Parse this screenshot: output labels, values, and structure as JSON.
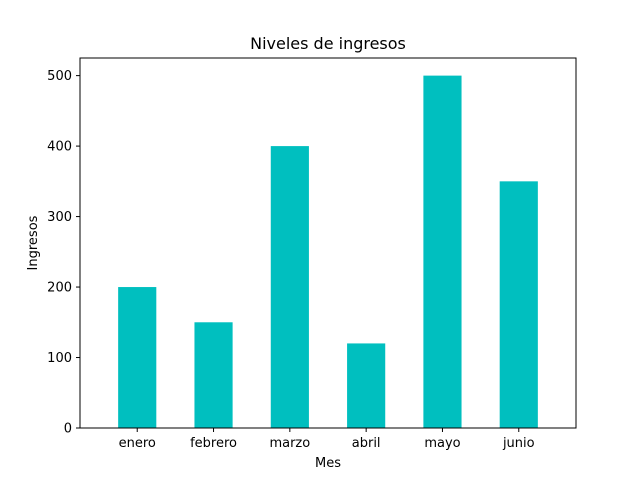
{
  "chart_data": {
    "type": "bar",
    "title": "Niveles de ingresos",
    "xlabel": "Mes",
    "ylabel": "Ingresos",
    "categories": [
      "enero",
      "febrero",
      "marzo",
      "abril",
      "mayo",
      "junio"
    ],
    "values": [
      200,
      150,
      400,
      120,
      500,
      350
    ],
    "ylim": [
      0,
      525
    ],
    "yticks": [
      0,
      100,
      200,
      300,
      400,
      500
    ],
    "bar_color": "#00bfbf",
    "grid": false,
    "legend": "none"
  }
}
